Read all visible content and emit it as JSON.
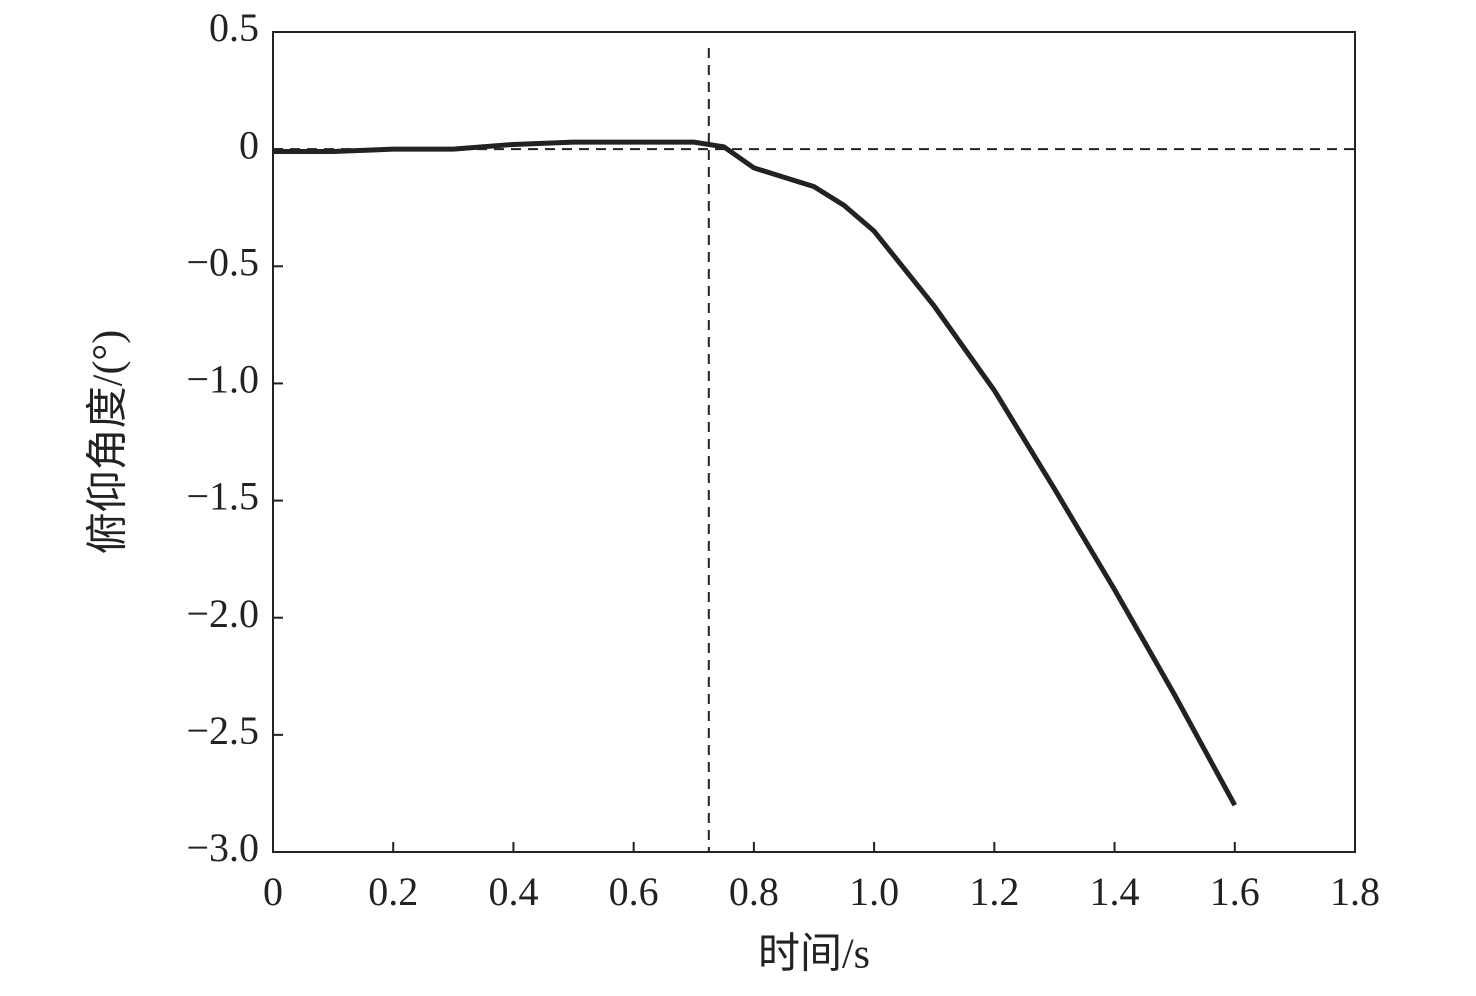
{
  "chart_data": {
    "type": "line",
    "xlabel": "时间/s",
    "ylabel": "俯仰角度/(°)",
    "x": [
      0,
      0.1,
      0.2,
      0.3,
      0.4,
      0.5,
      0.6,
      0.7,
      0.75,
      0.8,
      0.85,
      0.9,
      0.95,
      1.0,
      1.1,
      1.2,
      1.3,
      1.4,
      1.5,
      1.6
    ],
    "series": [
      {
        "color": "#222222",
        "values": [
          -0.01,
          -0.01,
          0.0,
          0.0,
          0.02,
          0.03,
          0.03,
          0.03,
          0.01,
          -0.08,
          -0.12,
          -0.16,
          -0.24,
          -0.35,
          -0.67,
          -1.03,
          -1.45,
          -1.88,
          -2.33,
          -2.8
        ]
      }
    ],
    "xlim": [
      0,
      1.8
    ],
    "xticks": [
      0,
      0.2,
      0.4,
      0.6,
      0.8,
      {
        "value": 1,
        "label": "1.0"
      },
      1.2,
      1.4,
      1.6,
      1.8
    ],
    "ylim": [
      -3,
      0.5
    ],
    "yticks": [
      {
        "value": -3,
        "label": "−3.0"
      },
      {
        "value": -2.5,
        "label": "−2.5"
      },
      {
        "value": -2,
        "label": "−2.0"
      },
      {
        "value": -1.5,
        "label": "−1.5"
      },
      {
        "value": -1,
        "label": "−1.0"
      },
      {
        "value": -0.5,
        "label": "−0.5"
      },
      0,
      0.5
    ],
    "vline": 0.725,
    "hline": 0,
    "grid": false
  }
}
